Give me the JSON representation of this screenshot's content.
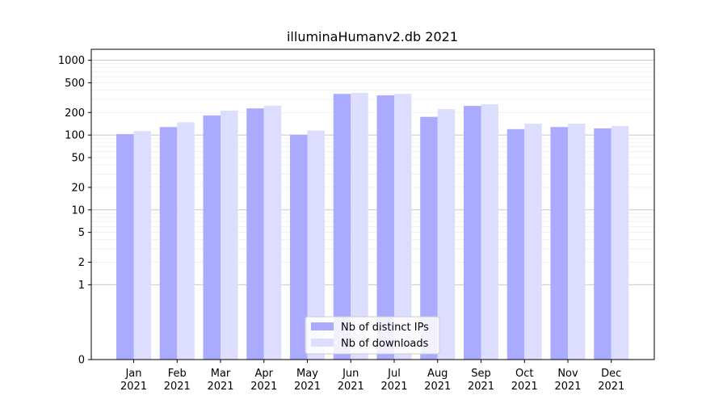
{
  "chart_data": {
    "type": "bar",
    "title": "illuminaHumanv2.db 2021",
    "xlabel": "",
    "ylabel": "",
    "y_scale": "symlog",
    "ylim": [
      0,
      1400
    ],
    "y_ticks": [
      0,
      1,
      2,
      5,
      10,
      20,
      50,
      100,
      200,
      500,
      1000
    ],
    "y_tick_labels": [
      "0",
      "1",
      "2",
      "5",
      "10",
      "20",
      "50",
      "100",
      "200",
      "500",
      "1000"
    ],
    "grid": "horizontal",
    "legend_position": "bottom-center",
    "categories": [
      "Jan",
      "Feb",
      "Mar",
      "Apr",
      "May",
      "Jun",
      "Jul",
      "Aug",
      "Sep",
      "Oct",
      "Nov",
      "Dec"
    ],
    "category_sublabels": [
      "2021",
      "2021",
      "2021",
      "2021",
      "2021",
      "2021",
      "2021",
      "2021",
      "2021",
      "2021",
      "2021",
      "2021"
    ],
    "series": [
      {
        "name": "Nb of distinct IPs",
        "color": "#aaaaff",
        "values": [
          103,
          128,
          183,
          227,
          101,
          355,
          340,
          175,
          245,
          120,
          128,
          123
        ]
      },
      {
        "name": "Nb of downloads",
        "color": "#ddddff",
        "values": [
          113,
          148,
          212,
          247,
          115,
          365,
          355,
          222,
          258,
          142,
          142,
          132
        ]
      }
    ]
  }
}
